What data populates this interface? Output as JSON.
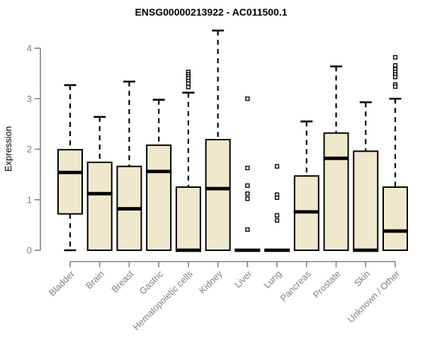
{
  "chart_data": {
    "type": "boxplot",
    "title": "ENSG00000213922 - AC011500.1",
    "ylabel": "Expression",
    "xlabel": "",
    "ylim": [
      0,
      4
    ],
    "yticks": [
      0,
      1,
      2,
      3,
      4
    ],
    "grid": false,
    "legend": "none",
    "outlier_marker": "open-square",
    "x_label_rotation_deg": 45,
    "categories": [
      "Bladder",
      "Brain",
      "Breast",
      "Gastric",
      "Hematopoietic cells",
      "Kidney",
      "Liver",
      "Lung",
      "Pancreas",
      "Prostate",
      "Skin",
      "Unknown / Other"
    ],
    "series": [
      {
        "category": "Bladder",
        "whisker_low": 0,
        "q1": 0.72,
        "median": 1.54,
        "q3": 1.99,
        "whisker_high": 3.27,
        "outliers": []
      },
      {
        "category": "Brain",
        "whisker_low": 0,
        "q1": 0,
        "median": 1.12,
        "q3": 1.74,
        "whisker_high": 2.64,
        "outliers": []
      },
      {
        "category": "Breast",
        "whisker_low": 0,
        "q1": 0,
        "median": 0.82,
        "q3": 1.66,
        "whisker_high": 3.34,
        "outliers": []
      },
      {
        "category": "Gastric",
        "whisker_low": 0,
        "q1": 0,
        "median": 1.56,
        "q3": 2.08,
        "whisker_high": 2.98,
        "outliers": []
      },
      {
        "category": "Hematopoietic cells",
        "whisker_low": 0,
        "q1": 0,
        "median": 0,
        "q3": 1.25,
        "whisker_high": 3.12,
        "outliers": [
          3.53,
          3.48,
          3.44,
          3.4,
          3.35,
          3.3,
          3.23
        ]
      },
      {
        "category": "Kidney",
        "whisker_low": 0,
        "q1": 0,
        "median": 1.22,
        "q3": 2.19,
        "whisker_high": 4.35,
        "outliers": []
      },
      {
        "category": "Liver",
        "whisker_low": 0,
        "q1": 0,
        "median": 0,
        "q3": 0,
        "whisker_high": 0,
        "outliers": [
          3.0,
          1.63,
          1.28,
          1.12,
          1.02,
          0.41
        ]
      },
      {
        "category": "Lung",
        "whisker_low": 0,
        "q1": 0,
        "median": 0,
        "q3": 0,
        "whisker_high": 0,
        "outliers": [
          1.66,
          1.1,
          1.04,
          0.69,
          0.59
        ]
      },
      {
        "category": "Pancreas",
        "whisker_low": 0,
        "q1": 0,
        "median": 0.76,
        "q3": 1.47,
        "whisker_high": 2.55,
        "outliers": []
      },
      {
        "category": "Prostate",
        "whisker_low": 0,
        "q1": 0,
        "median": 1.82,
        "q3": 2.32,
        "whisker_high": 3.64,
        "outliers": []
      },
      {
        "category": "Skin",
        "whisker_low": 0,
        "q1": 0,
        "median": 0,
        "q3": 1.96,
        "whisker_high": 2.93,
        "outliers": []
      },
      {
        "category": "Unknown / Other",
        "whisker_low": 0,
        "q1": 0,
        "median": 0.38,
        "q3": 1.25,
        "whisker_high": 3.0,
        "outliers": [
          3.82,
          3.66,
          3.58,
          3.53,
          3.48,
          3.43,
          3.28,
          3.24
        ]
      }
    ]
  },
  "colors": {
    "box_fill": "#EEE8CD",
    "box_stroke": "#000000",
    "median": "#000000",
    "whisker": "#000000",
    "outlier_stroke": "#000000",
    "outlier_fill": "#FFFFFF",
    "axis": "#808080",
    "tick_label": "#808080",
    "title": "#000000",
    "background": "#FFFFFF"
  }
}
